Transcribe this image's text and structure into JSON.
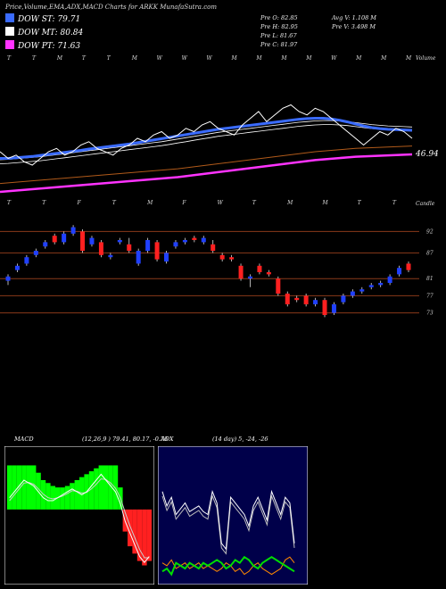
{
  "title": "Price,Volume,EMA,ADX,MACD Charts for ARKK MunafaSutra.com",
  "legend": [
    {
      "label": "DOW ST: 79.71",
      "color": "#3a6bff"
    },
    {
      "label": "DOW MT: 80.84",
      "color": "#ffffff"
    },
    {
      "label": "DOW PT: 71.63",
      "color": "#ff33ff"
    }
  ],
  "stats": {
    "pre_o": "Pre  O: 82.85",
    "pre_h": "Pre  H: 82.95",
    "pre_l": "Pre  L: 81.67",
    "pre_c": "Pre  C: 81.97",
    "avg_v": "Avg V: 1.108 M",
    "pre_v": "Pre  V: 3.498 M"
  },
  "top_labels": [
    "T",
    "T",
    "M",
    "T",
    "T",
    "M",
    "W",
    "W",
    "W",
    "M",
    "M",
    "M",
    "M",
    "W",
    "M",
    "M",
    "M"
  ],
  "label_volume_right": "Volume",
  "label_ema_value": "46.94",
  "mid_labels": [
    "T",
    "T",
    "F",
    "T",
    "M",
    "F",
    "W",
    "T",
    "M",
    "M",
    "T",
    "T"
  ],
  "label_candle_right": "Candle",
  "price_levels": [
    "92",
    "87",
    "81",
    "77",
    "73"
  ],
  "macd": {
    "label": "MACD",
    "params": "(12,26,9 ) 79.41, 80.17, -0.76"
  },
  "adx": {
    "label": "ADX",
    "params": "(14 day) 5, -24, -26"
  },
  "colors": {
    "ema_fast": "#3a6bff",
    "ema_mid": "#ffffff",
    "ema_slow": "#ff33ff",
    "ema_long": "#b05a1a",
    "up": "#2040ff",
    "down": "#ff2020",
    "level": "#8a3a1a",
    "macd_hist_pos": "#00ff00",
    "macd_hist_neg": "#ff2020",
    "adx_plus": "#00dd00",
    "adx_minus": "#ff8800"
  },
  "chart_data": [
    {
      "type": "line",
      "name_note": "EMA panel",
      "close": [
        84,
        82,
        83,
        81,
        80,
        82,
        84,
        85,
        83,
        84,
        86,
        87,
        85,
        84,
        83,
        85,
        86,
        88,
        87,
        89,
        90,
        88,
        89,
        91,
        90,
        92,
        93,
        91,
        90,
        89,
        92,
        94,
        96,
        93,
        95,
        97,
        98,
        96,
        95,
        97,
        96,
        94,
        92,
        90,
        88,
        86,
        88,
        90,
        89,
        91,
        90,
        88
      ],
      "ema_fast": [
        82,
        82,
        82.2,
        82.4,
        82.6,
        82.9,
        83.2,
        83.5,
        83.8,
        84.1,
        84.4,
        84.8,
        85.1,
        85.4,
        85.7,
        86,
        86.3,
        86.7,
        87.1,
        87.5,
        87.9,
        88.3,
        88.7,
        89.1,
        89.5,
        89.9,
        90.3,
        90.7,
        91,
        91.3,
        91.6,
        91.9,
        92.2,
        92.5,
        92.8,
        93.1,
        93.4,
        93.7,
        93.9,
        94,
        94,
        93.8,
        93.4,
        92.9,
        92.3,
        91.7,
        91.2,
        90.9,
        90.7,
        90.6,
        90.5,
        90.4
      ],
      "ema_mid": [
        81,
        81.1,
        81.3,
        81.5,
        81.7,
        81.9,
        82.2,
        82.5,
        82.8,
        83.1,
        83.4,
        83.7,
        84,
        84.3,
        84.6,
        84.9,
        85.2,
        85.5,
        85.8,
        86.1,
        86.4,
        86.8,
        87.2,
        87.6,
        88,
        88.4,
        88.8,
        89.2,
        89.5,
        89.8,
        90.1,
        90.4,
        90.7,
        91,
        91.3,
        91.6,
        91.9,
        92.2,
        92.4,
        92.6,
        92.7,
        92.7,
        92.6,
        92.4,
        92.1,
        91.8,
        91.5,
        91.3,
        91.1,
        91,
        90.9,
        90.8
      ],
      "ema_slow": [
        72,
        72.2,
        72.4,
        72.6,
        72.8,
        73,
        73.2,
        73.4,
        73.6,
        73.8,
        74,
        74.2,
        74.4,
        74.6,
        74.8,
        75,
        75.2,
        75.4,
        75.6,
        75.8,
        76,
        76.2,
        76.4,
        76.7,
        77,
        77.3,
        77.6,
        77.9,
        78.2,
        78.5,
        78.8,
        79.1,
        79.4,
        79.7,
        80,
        80.3,
        80.6,
        80.9,
        81.2,
        81.5,
        81.7,
        81.9,
        82.1,
        82.3,
        82.5,
        82.6,
        82.7,
        82.8,
        82.9,
        83,
        83.1,
        83.2
      ]
    },
    {
      "type": "candlestick",
      "name_note": "price panel",
      "levels": [
        92,
        87,
        81,
        77,
        73
      ],
      "candles": [
        {
          "o": 80.5,
          "c": 81.5,
          "h": 82,
          "l": 79.5
        },
        {
          "o": 83,
          "c": 84,
          "h": 84.5,
          "l": 82.5
        },
        {
          "o": 84.5,
          "c": 86,
          "h": 86.5,
          "l": 84
        },
        {
          "o": 86.5,
          "c": 87.5,
          "h": 88,
          "l": 86
        },
        {
          "o": 88.5,
          "c": 89.5,
          "h": 90,
          "l": 88
        },
        {
          "o": 91,
          "c": 89.5,
          "h": 91.5,
          "l": 89
        },
        {
          "o": 89.5,
          "c": 91.5,
          "h": 92,
          "l": 89
        },
        {
          "o": 91.5,
          "c": 93,
          "h": 93.5,
          "l": 91
        },
        {
          "o": 92,
          "c": 87.5,
          "h": 92.5,
          "l": 87
        },
        {
          "o": 89,
          "c": 90.5,
          "h": 91,
          "l": 88.5
        },
        {
          "o": 89.5,
          "c": 86.5,
          "h": 90,
          "l": 86
        },
        {
          "o": 86,
          "c": 86.5,
          "h": 87,
          "l": 85.5
        },
        {
          "o": 89.5,
          "c": 90,
          "h": 90.5,
          "l": 89
        },
        {
          "o": 89,
          "c": 87.5,
          "h": 90.5,
          "l": 87
        },
        {
          "o": 84.5,
          "c": 87.5,
          "h": 88,
          "l": 84
        },
        {
          "o": 87.5,
          "c": 90,
          "h": 90.5,
          "l": 87
        },
        {
          "o": 89.5,
          "c": 85.5,
          "h": 90,
          "l": 85
        },
        {
          "o": 85,
          "c": 87,
          "h": 87.5,
          "l": 84.5
        },
        {
          "o": 88.5,
          "c": 89.5,
          "h": 90,
          "l": 88
        },
        {
          "o": 89.5,
          "c": 90,
          "h": 90.5,
          "l": 89
        },
        {
          "o": 90.5,
          "c": 90,
          "h": 91,
          "l": 89.5
        },
        {
          "o": 89.5,
          "c": 90.5,
          "h": 91,
          "l": 89
        },
        {
          "o": 89,
          "c": 87.5,
          "h": 90,
          "l": 87
        },
        {
          "o": 86.5,
          "c": 85.5,
          "h": 87,
          "l": 85
        },
        {
          "o": 86,
          "c": 85.5,
          "h": 86.5,
          "l": 85
        },
        {
          "o": 84,
          "c": 81,
          "h": 84.5,
          "l": 80.5
        },
        {
          "o": 81,
          "c": 81.5,
          "h": 82,
          "l": 79
        },
        {
          "o": 84,
          "c": 82.5,
          "h": 84.5,
          "l": 82
        },
        {
          "o": 82.5,
          "c": 82,
          "h": 83,
          "l": 81.5
        },
        {
          "o": 81,
          "c": 77.5,
          "h": 81.5,
          "l": 77
        },
        {
          "o": 77.5,
          "c": 75,
          "h": 78,
          "l": 74.5
        },
        {
          "o": 76.5,
          "c": 76,
          "h": 77,
          "l": 75.5
        },
        {
          "o": 77,
          "c": 75,
          "h": 77.5,
          "l": 74.5
        },
        {
          "o": 75,
          "c": 76,
          "h": 76.5,
          "l": 74.5
        },
        {
          "o": 76,
          "c": 72.5,
          "h": 76.5,
          "l": 72
        },
        {
          "o": 73,
          "c": 75,
          "h": 75.5,
          "l": 72.5
        },
        {
          "o": 75.5,
          "c": 77,
          "h": 77.5,
          "l": 75
        },
        {
          "o": 77,
          "c": 78,
          "h": 78.5,
          "l": 76.5
        },
        {
          "o": 78,
          "c": 78.5,
          "h": 79,
          "l": 77.5
        },
        {
          "o": 79,
          "c": 79.5,
          "h": 80,
          "l": 78.5
        },
        {
          "o": 79.5,
          "c": 80,
          "h": 80.5,
          "l": 79
        },
        {
          "o": 80,
          "c": 81.5,
          "h": 82,
          "l": 79.5
        },
        {
          "o": 82,
          "c": 83.5,
          "h": 84,
          "l": 81.5
        },
        {
          "o": 84.5,
          "c": 83,
          "h": 85,
          "l": 82.5
        }
      ]
    },
    {
      "type": "bar",
      "name_note": "MACD panel",
      "macd": [
        2,
        3,
        4,
        5,
        4.5,
        4,
        3,
        2,
        1.5,
        1.5,
        2,
        2.5,
        3,
        3.5,
        3,
        2.5,
        3,
        4,
        5,
        6,
        5,
        4,
        3,
        1,
        -2,
        -4,
        -6,
        -8,
        -9,
        -8
      ],
      "signal": [
        1.5,
        2.5,
        3.5,
        4.5,
        4.6,
        4.3,
        3.5,
        2.6,
        2,
        1.8,
        2,
        2.3,
        2.7,
        3.2,
        3.1,
        2.8,
        2.9,
        3.5,
        4.3,
        5.2,
        5.1,
        4.5,
        3.6,
        2,
        -0.5,
        -2.8,
        -4.8,
        -6.8,
        -8.2,
        -8.2
      ],
      "histogram": [
        3,
        3,
        3,
        3,
        3,
        3,
        2.5,
        2,
        1.8,
        1.6,
        1.5,
        1.5,
        1.6,
        1.8,
        2,
        2.2,
        2.4,
        2.6,
        2.8,
        3,
        3,
        3,
        3,
        1.5,
        -1.5,
        -2.5,
        -3,
        -3.5,
        -3.8,
        -3.5
      ]
    },
    {
      "type": "line",
      "name_note": "ADX panel",
      "adx": [
        30,
        25,
        28,
        22,
        24,
        26,
        23,
        24,
        25,
        23,
        22,
        30,
        26,
        12,
        10,
        28,
        26,
        24,
        22,
        18,
        25,
        28,
        24,
        20,
        30,
        26,
        22,
        28,
        26,
        12
      ],
      "plus_di": [
        35,
        36,
        34,
        38,
        37,
        36,
        38,
        37,
        36,
        38,
        37,
        38,
        39,
        38,
        36,
        37,
        39,
        38,
        40,
        39,
        37,
        36,
        38,
        39,
        40,
        39,
        38,
        37,
        36,
        35
      ],
      "minus_di": [
        38,
        37,
        39,
        36,
        37,
        38,
        36,
        37,
        38,
        36,
        37,
        36,
        35,
        36,
        38,
        37,
        35,
        36,
        34,
        35,
        37,
        38,
        36,
        35,
        34,
        35,
        36,
        39,
        40,
        38
      ]
    }
  ]
}
